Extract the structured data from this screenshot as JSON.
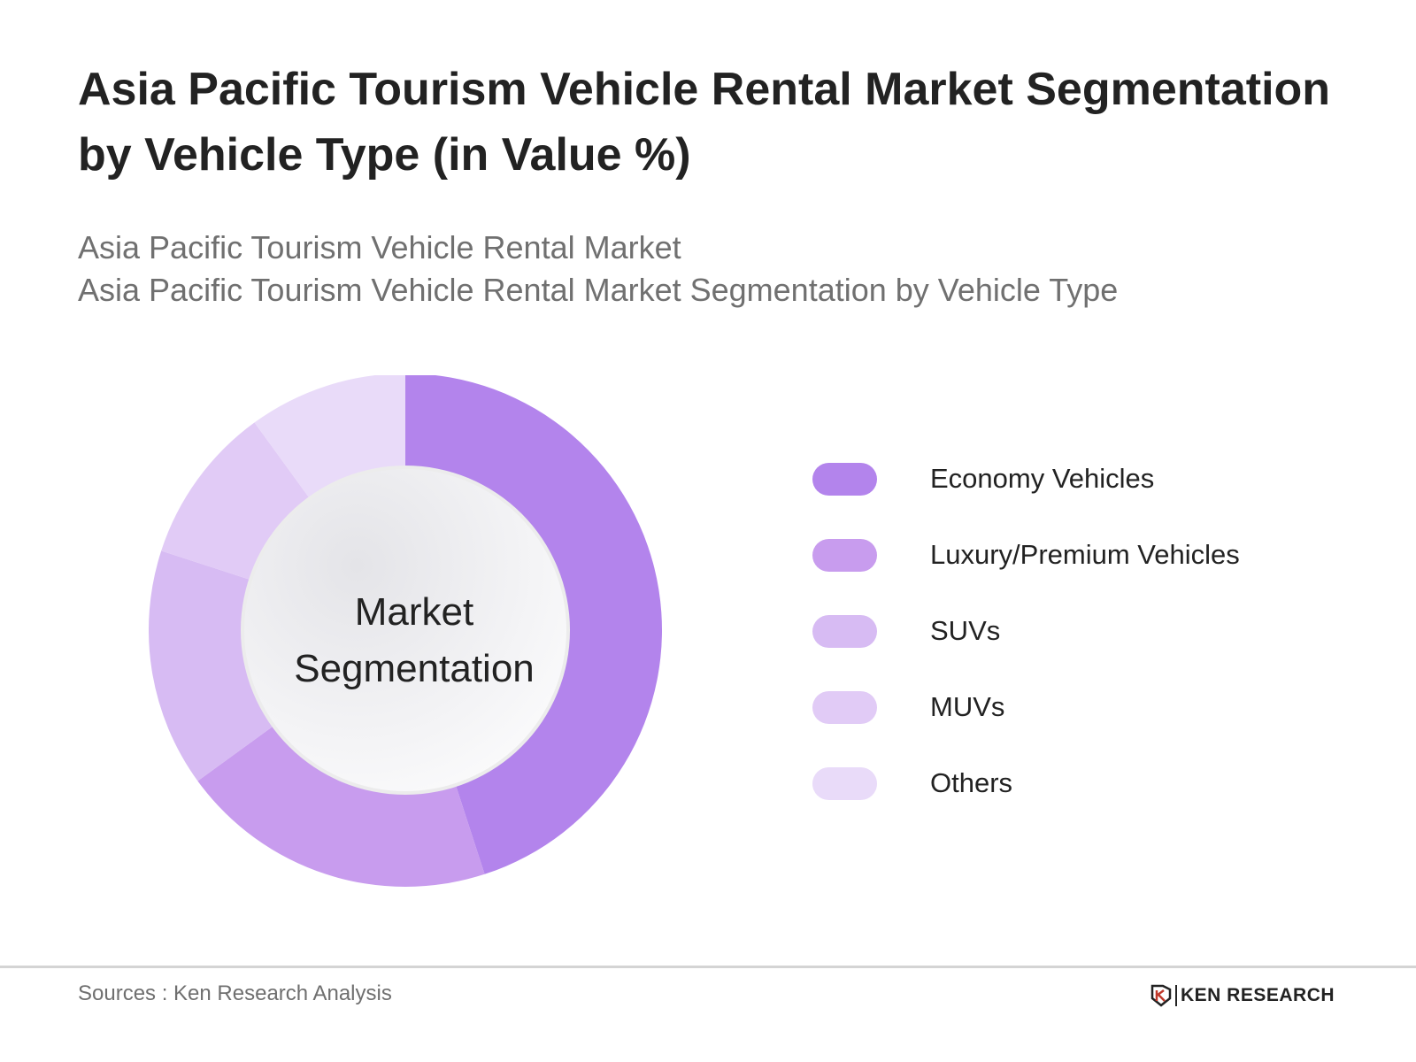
{
  "header": {
    "title": "Asia Pacific Tourism Vehicle Rental Market Segmentation by Vehicle Type (in Value %)",
    "subtitle_line1": "Asia Pacific Tourism Vehicle Rental Market",
    "subtitle_line2": "Asia Pacific Tourism Vehicle Rental Market Segmentation by Vehicle Type"
  },
  "chart_data": {
    "type": "pie",
    "subtype": "donut",
    "center_label": "Market Segmentation",
    "categories": [
      "Economy Vehicles",
      "Luxury/Premium Vehicles",
      "SUVs",
      "MUVs",
      "Others"
    ],
    "values": [
      45,
      20,
      15,
      10,
      10
    ],
    "colors": [
      "#b384ec",
      "#c89cee",
      "#d7bbf3",
      "#e1cbf6",
      "#e9dbf9"
    ],
    "legend_position": "right"
  },
  "footer": {
    "source": "Sources : Ken Research Analysis",
    "brand": "KEN RESEARCH"
  }
}
